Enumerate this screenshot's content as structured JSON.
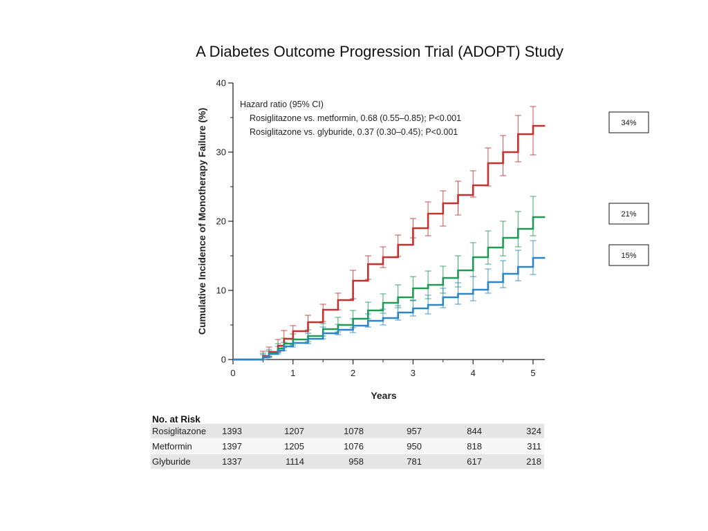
{
  "chart_data": {
    "type": "line",
    "title": "A Diabetes Outcome Progression Trial (ADOPT) Study",
    "xlabel": "Years",
    "ylabel": "Cumulative Incidence of Monotherapy Failure (%)",
    "xlim": [
      0,
      5.2
    ],
    "ylim": [
      0,
      40
    ],
    "x_ticks": [
      "0",
      "1",
      "2",
      "3",
      "4",
      "5"
    ],
    "y_ticks": [
      "0",
      "10",
      "20",
      "30",
      "40"
    ],
    "grid": false,
    "annotation": {
      "heading": "Hazard ratio (95% CI)",
      "lines": [
        "Rosiglitazone vs. metformin, 0.68 (0.55–0.85); P<0.001",
        "Rosiglitazone vs. glyburide, 0.37 (0.30–0.45); P<0.001"
      ]
    },
    "series": [
      {
        "color": "#c8302e",
        "points": [
          [
            0,
            0
          ],
          [
            0.5,
            0.5
          ],
          [
            0.6,
            1.1
          ],
          [
            0.75,
            2.0
          ],
          [
            0.85,
            3.0
          ],
          [
            1.0,
            4.1
          ],
          [
            1.25,
            5.4
          ],
          [
            1.5,
            7.2
          ],
          [
            1.75,
            8.6
          ],
          [
            2.0,
            11.4
          ],
          [
            2.25,
            13.8
          ],
          [
            2.5,
            14.8
          ],
          [
            2.75,
            16.6
          ],
          [
            3.0,
            19.0
          ],
          [
            3.25,
            21.1
          ],
          [
            3.5,
            22.6
          ],
          [
            3.75,
            23.8
          ],
          [
            4.0,
            25.2
          ],
          [
            4.25,
            28.4
          ],
          [
            4.5,
            30.0
          ],
          [
            4.75,
            32.6
          ],
          [
            5.0,
            33.8
          ],
          [
            5.2,
            33.8
          ]
        ],
        "ci": [
          [
            0.5,
            0,
            1.2
          ],
          [
            0.6,
            0.5,
            1.8
          ],
          [
            0.75,
            1.1,
            2.9
          ],
          [
            0.85,
            1.9,
            4.2
          ],
          [
            1.0,
            2.9,
            4.9
          ],
          [
            1.25,
            3.8,
            6.4
          ],
          [
            1.5,
            5.5,
            8.0
          ],
          [
            1.75,
            7.2,
            9.6
          ],
          [
            2.0,
            8.8,
            12.9
          ],
          [
            2.25,
            11.6,
            15.0
          ],
          [
            2.5,
            13.3,
            16.3
          ],
          [
            2.75,
            14.9,
            18.0
          ],
          [
            3.0,
            17.6,
            20.4
          ],
          [
            3.25,
            17.9,
            22.8
          ],
          [
            3.5,
            19.3,
            24.4
          ],
          [
            3.75,
            20.9,
            25.8
          ],
          [
            4.0,
            23.5,
            27.3
          ],
          [
            4.25,
            25.1,
            30.6
          ],
          [
            4.5,
            26.6,
            32.4
          ],
          [
            4.75,
            28.6,
            35.3
          ],
          [
            5.0,
            29.6,
            36.6
          ]
        ]
      },
      {
        "color": "#1f9a55",
        "points": [
          [
            0,
            0
          ],
          [
            0.5,
            0.4
          ],
          [
            0.6,
            0.9
          ],
          [
            0.75,
            1.6
          ],
          [
            0.85,
            2.3
          ],
          [
            1.0,
            2.9
          ],
          [
            1.25,
            3.4
          ],
          [
            1.5,
            4.4
          ],
          [
            1.75,
            5.0
          ],
          [
            2.0,
            5.9
          ],
          [
            2.25,
            7.1
          ],
          [
            2.5,
            8.2
          ],
          [
            2.75,
            9.0
          ],
          [
            3.0,
            10.3
          ],
          [
            3.25,
            10.8
          ],
          [
            3.5,
            11.8
          ],
          [
            3.75,
            12.9
          ],
          [
            4.0,
            14.8
          ],
          [
            4.25,
            16.2
          ],
          [
            4.5,
            17.6
          ],
          [
            4.75,
            18.9
          ],
          [
            5.0,
            20.6
          ],
          [
            5.2,
            20.6
          ]
        ],
        "ci": [
          [
            0.5,
            0,
            0.9
          ],
          [
            0.6,
            0.4,
            1.4
          ],
          [
            0.75,
            1.0,
            2.3
          ],
          [
            0.85,
            1.7,
            3.1
          ],
          [
            1.0,
            2.1,
            3.7
          ],
          [
            1.25,
            2.6,
            4.3
          ],
          [
            1.5,
            3.4,
            5.2
          ],
          [
            1.75,
            4.0,
            6.1
          ],
          [
            2.0,
            4.6,
            7.1
          ],
          [
            2.25,
            5.9,
            8.3
          ],
          [
            2.5,
            6.7,
            9.5
          ],
          [
            2.75,
            7.5,
            10.8
          ],
          [
            3.0,
            8.6,
            12.0
          ],
          [
            3.25,
            8.8,
            12.8
          ],
          [
            3.5,
            9.6,
            13.5
          ],
          [
            3.75,
            10.5,
            15.0
          ],
          [
            4.0,
            12.0,
            16.9
          ],
          [
            4.25,
            13.8,
            18.6
          ],
          [
            4.5,
            15.0,
            20.0
          ],
          [
            4.75,
            16.3,
            21.4
          ],
          [
            5.0,
            17.9,
            23.6
          ]
        ]
      },
      {
        "color": "#2a86c8",
        "points": [
          [
            0,
            0
          ],
          [
            0.5,
            0.3
          ],
          [
            0.6,
            0.8
          ],
          [
            0.75,
            1.3
          ],
          [
            0.85,
            1.9
          ],
          [
            1.0,
            2.4
          ],
          [
            1.25,
            3.0
          ],
          [
            1.5,
            3.8
          ],
          [
            1.75,
            4.3
          ],
          [
            2.0,
            4.9
          ],
          [
            2.25,
            5.6
          ],
          [
            2.5,
            6.0
          ],
          [
            2.75,
            6.8
          ],
          [
            3.0,
            7.4
          ],
          [
            3.25,
            7.9
          ],
          [
            3.5,
            9.0
          ],
          [
            3.75,
            9.5
          ],
          [
            4.0,
            10.1
          ],
          [
            4.25,
            11.2
          ],
          [
            4.5,
            12.4
          ],
          [
            4.75,
            13.4
          ],
          [
            5.0,
            14.7
          ],
          [
            5.2,
            14.7
          ]
        ],
        "ci": [
          [
            0.5,
            0,
            0.7
          ],
          [
            0.6,
            0.3,
            1.2
          ],
          [
            0.75,
            0.8,
            1.9
          ],
          [
            0.85,
            1.3,
            2.5
          ],
          [
            1.0,
            1.8,
            3.0
          ],
          [
            1.25,
            2.3,
            3.8
          ],
          [
            1.5,
            3.0,
            4.7
          ],
          [
            1.75,
            3.6,
            5.1
          ],
          [
            2.0,
            3.9,
            5.9
          ],
          [
            2.25,
            4.7,
            6.6
          ],
          [
            2.5,
            5.0,
            7.3
          ],
          [
            2.75,
            5.7,
            7.8
          ],
          [
            3.0,
            6.3,
            8.5
          ],
          [
            3.25,
            6.6,
            9.3
          ],
          [
            3.5,
            7.5,
            10.3
          ],
          [
            3.75,
            8.0,
            11.1
          ],
          [
            4.0,
            8.5,
            12.0
          ],
          [
            4.25,
            9.6,
            13.1
          ],
          [
            4.5,
            10.4,
            14.3
          ],
          [
            4.75,
            11.4,
            15.8
          ],
          [
            5.0,
            12.3,
            17.2
          ]
        ]
      }
    ],
    "end_labels": [
      "34%",
      "21%",
      "15%"
    ],
    "risk_table": {
      "heading": "No. at Risk",
      "rows": [
        {
          "label": "Rosiglitazone",
          "values": [
            "1393",
            "1207",
            "1078",
            "957",
            "844",
            "324"
          ]
        },
        {
          "label": "Metformin",
          "values": [
            "1397",
            "1205",
            "1076",
            "950",
            "818",
            "311"
          ]
        },
        {
          "label": "Glyburide",
          "values": [
            "1337",
            "1114",
            "958",
            "781",
            "617",
            "218"
          ]
        }
      ]
    }
  }
}
